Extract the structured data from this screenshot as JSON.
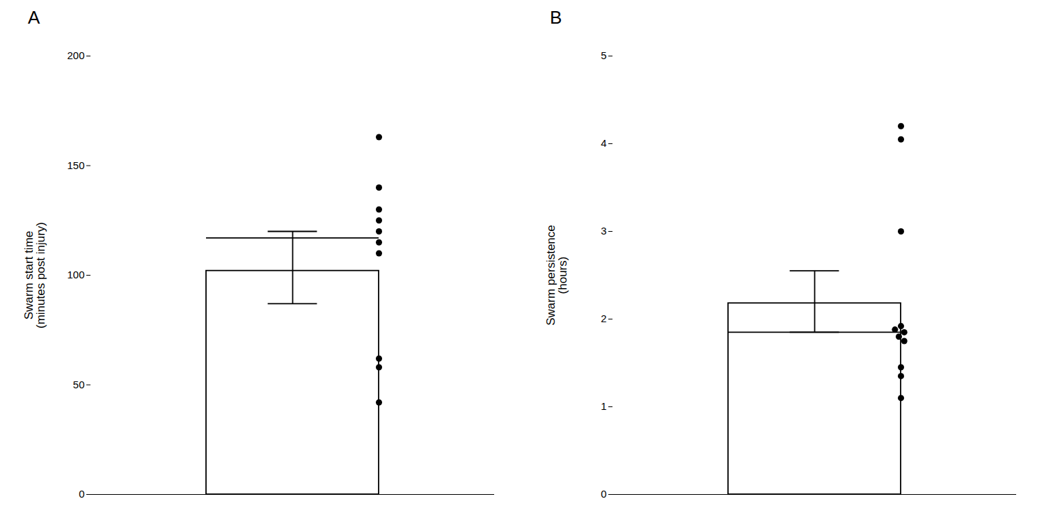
{
  "chart_data": [
    {
      "type": "bar",
      "title": "A",
      "categories": [
        null
      ],
      "values": [
        102
      ],
      "median": [
        117
      ],
      "error_low": [
        87
      ],
      "error_high": [
        120
      ],
      "points": [
        163,
        140,
        130,
        125,
        120,
        115,
        110,
        62,
        58,
        42
      ],
      "ylabel": "Swarm start time\n(minutes post injury)",
      "ylim": [
        0,
        200
      ],
      "yticks": [
        0,
        50,
        100,
        150,
        200
      ],
      "color": "#000000",
      "grid": false,
      "tick_labels": "y"
    },
    {
      "type": "bar",
      "title": "B",
      "categories": [
        null
      ],
      "values": [
        2.18
      ],
      "median": [
        1.85
      ],
      "error_low": [
        1.85
      ],
      "error_high": [
        2.55
      ],
      "points": [
        4.2,
        4.05,
        3.0,
        1.92,
        1.88,
        1.85,
        1.8,
        1.75,
        1.45,
        1.35,
        1.1
      ],
      "ylabel": "Swarm persistence\n(hours)",
      "ylim": [
        0,
        5
      ],
      "yticks": [
        0,
        1,
        2,
        3,
        4,
        5
      ],
      "color": "#000000",
      "grid": false,
      "tick_labels": "y"
    }
  ]
}
